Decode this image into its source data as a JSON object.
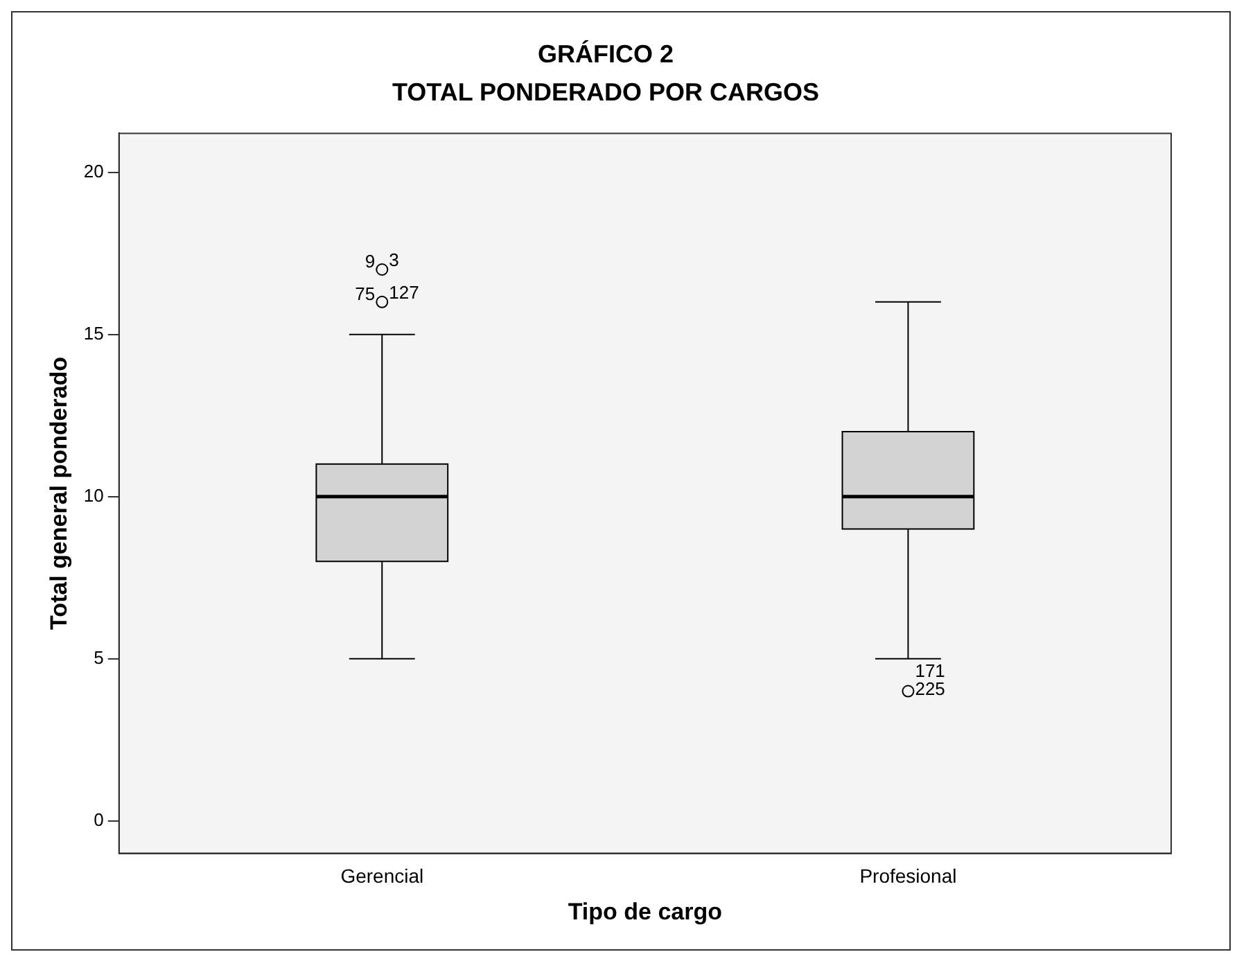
{
  "chart_data": {
    "type": "box",
    "title": "GRÁFICO 2",
    "subtitle": "TOTAL PONDERADO POR CARGOS",
    "xlabel": "Tipo de cargo",
    "ylabel": "Total general ponderado",
    "categories": [
      "Gerencial",
      "Profesional"
    ],
    "color": "#d3d3d3",
    "boxes": [
      {
        "low": 5,
        "q1": 8,
        "median": 10,
        "q3": 11,
        "high": 15,
        "outliers": [
          16,
          17
        ]
      },
      {
        "low": 5,
        "q1": 9,
        "median": 10,
        "q3": 12,
        "high": 16,
        "outliers": [
          4
        ]
      }
    ],
    "ylim": [
      -1,
      21.2
    ],
    "yticks": [
      0,
      5,
      10,
      15,
      20
    ],
    "grid": false,
    "legend": false,
    "marker": "circle",
    "annotations": [
      "127",
      "75",
      "3",
      "9",
      "171",
      "225"
    ]
  }
}
